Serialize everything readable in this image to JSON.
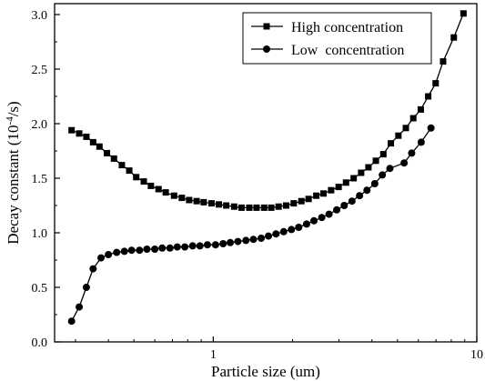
{
  "chart_data": {
    "type": "line",
    "title": "",
    "xlabel": "Particle size (um)",
    "ylabel_main": "Decay constant (10",
    "ylabel_exp": "-4",
    "ylabel_tail": "/s)",
    "x_scale": "log",
    "xlim": [
      0.25,
      10
    ],
    "ylim": [
      0,
      3.1
    ],
    "x_ticks": [
      1,
      10
    ],
    "y_ticks": [
      0,
      0.5,
      1.0,
      1.5,
      2.0,
      2.5,
      3.0
    ],
    "y_tick_labels": [
      "0.0",
      "0.5",
      "1.0",
      "1.5",
      "2.0",
      "2.5",
      "3.0"
    ],
    "grid": false,
    "legend_position": "top-right",
    "series": [
      {
        "name": "High concentration",
        "marker": "square",
        "points": [
          [
            0.29,
            1.94
          ],
          [
            0.31,
            1.91
          ],
          [
            0.33,
            1.88
          ],
          [
            0.35,
            1.83
          ],
          [
            0.37,
            1.79
          ],
          [
            0.395,
            1.73
          ],
          [
            0.42,
            1.68
          ],
          [
            0.45,
            1.62
          ],
          [
            0.48,
            1.57
          ],
          [
            0.51,
            1.51
          ],
          [
            0.545,
            1.47
          ],
          [
            0.58,
            1.43
          ],
          [
            0.62,
            1.4
          ],
          [
            0.66,
            1.37
          ],
          [
            0.71,
            1.34
          ],
          [
            0.76,
            1.32
          ],
          [
            0.81,
            1.3
          ],
          [
            0.865,
            1.29
          ],
          [
            0.92,
            1.28
          ],
          [
            0.985,
            1.27
          ],
          [
            1.05,
            1.26
          ],
          [
            1.12,
            1.25
          ],
          [
            1.2,
            1.24
          ],
          [
            1.28,
            1.23
          ],
          [
            1.37,
            1.23
          ],
          [
            1.46,
            1.23
          ],
          [
            1.56,
            1.23
          ],
          [
            1.66,
            1.23
          ],
          [
            1.77,
            1.24
          ],
          [
            1.89,
            1.25
          ],
          [
            2.02,
            1.27
          ],
          [
            2.16,
            1.29
          ],
          [
            2.3,
            1.31
          ],
          [
            2.46,
            1.34
          ],
          [
            2.62,
            1.36
          ],
          [
            2.8,
            1.39
          ],
          [
            2.99,
            1.42
          ],
          [
            3.19,
            1.46
          ],
          [
            3.41,
            1.5
          ],
          [
            3.64,
            1.55
          ],
          [
            3.88,
            1.6
          ],
          [
            4.14,
            1.66
          ],
          [
            4.42,
            1.72
          ],
          [
            4.72,
            1.82
          ],
          [
            5.04,
            1.89
          ],
          [
            5.38,
            1.96
          ],
          [
            5.74,
            2.05
          ],
          [
            6.13,
            2.13
          ],
          [
            6.54,
            2.25
          ],
          [
            6.98,
            2.37
          ],
          [
            7.45,
            2.57
          ],
          [
            8.18,
            2.79
          ],
          [
            8.9,
            3.01
          ]
        ]
      },
      {
        "name": "Low  concentration",
        "marker": "circle",
        "points": [
          [
            0.29,
            0.19
          ],
          [
            0.31,
            0.32
          ],
          [
            0.33,
            0.5
          ],
          [
            0.35,
            0.67
          ],
          [
            0.375,
            0.77
          ],
          [
            0.4,
            0.8
          ],
          [
            0.43,
            0.82
          ],
          [
            0.46,
            0.83
          ],
          [
            0.49,
            0.84
          ],
          [
            0.525,
            0.84
          ],
          [
            0.56,
            0.85
          ],
          [
            0.6,
            0.85
          ],
          [
            0.64,
            0.86
          ],
          [
            0.685,
            0.86
          ],
          [
            0.73,
            0.87
          ],
          [
            0.78,
            0.87
          ],
          [
            0.835,
            0.88
          ],
          [
            0.89,
            0.88
          ],
          [
            0.95,
            0.89
          ],
          [
            1.02,
            0.89
          ],
          [
            1.09,
            0.9
          ],
          [
            1.16,
            0.91
          ],
          [
            1.24,
            0.92
          ],
          [
            1.33,
            0.93
          ],
          [
            1.42,
            0.94
          ],
          [
            1.52,
            0.95
          ],
          [
            1.62,
            0.97
          ],
          [
            1.73,
            0.99
          ],
          [
            1.85,
            1.01
          ],
          [
            1.98,
            1.03
          ],
          [
            2.11,
            1.05
          ],
          [
            2.26,
            1.08
          ],
          [
            2.41,
            1.11
          ],
          [
            2.58,
            1.14
          ],
          [
            2.75,
            1.17
          ],
          [
            2.94,
            1.21
          ],
          [
            3.14,
            1.25
          ],
          [
            3.36,
            1.29
          ],
          [
            3.59,
            1.34
          ],
          [
            3.83,
            1.39
          ],
          [
            4.1,
            1.45
          ],
          [
            4.38,
            1.53
          ],
          [
            4.68,
            1.59
          ],
          [
            5.3,
            1.64
          ],
          [
            5.66,
            1.73
          ],
          [
            6.15,
            1.83
          ],
          [
            6.7,
            1.96
          ]
        ]
      }
    ]
  }
}
